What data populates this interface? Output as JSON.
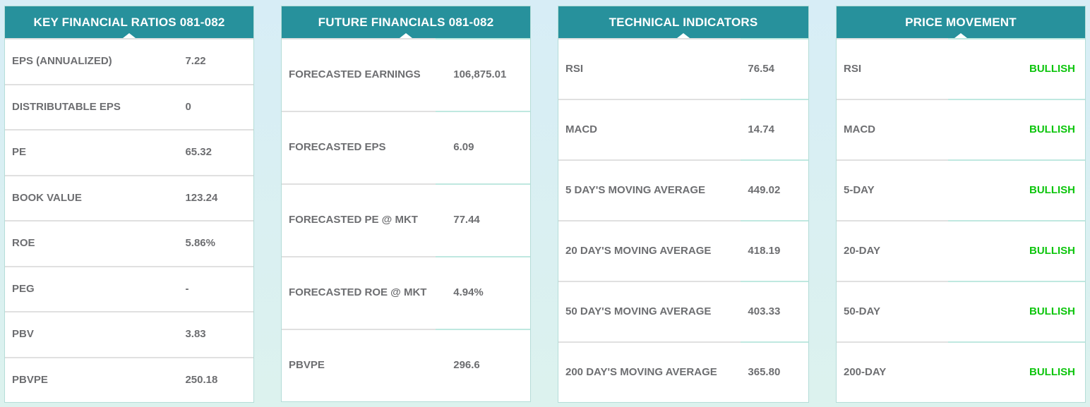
{
  "theme": {
    "header_bg": "#27919c",
    "header_text": "#ffffff",
    "label_color": "#6d6e71",
    "value_color": "#6d6e71",
    "bullish_color": "#0dc50d",
    "page_bg_top": "#d7edf6",
    "page_bg_bottom": "#dcf2ee",
    "card_bg": "#ffffff",
    "card_border": "#b5ddd8",
    "separator_gray": "#e0e0e0",
    "separator_teal": "#bfe8e0"
  },
  "cards": [
    {
      "title": "KEY FINANCIAL RATIOS 081-082",
      "rows": [
        {
          "label": "EPS (ANNUALIZED)",
          "value": "7.22"
        },
        {
          "label": "DISTRIBUTABLE EPS",
          "value": "0"
        },
        {
          "label": "PE",
          "value": "65.32"
        },
        {
          "label": "BOOK VALUE",
          "value": "123.24"
        },
        {
          "label": "ROE",
          "value": "5.86%"
        },
        {
          "label": "PEG",
          "value": "-"
        },
        {
          "label": "PBV",
          "value": "3.83"
        },
        {
          "label": "PBVPE",
          "value": "250.18"
        }
      ]
    },
    {
      "title": "FUTURE FINANCIALS 081-082",
      "rows": [
        {
          "label": "FORECASTED EARNINGS",
          "value": "106,875.01"
        },
        {
          "label": "FORECASTED EPS",
          "value": "6.09"
        },
        {
          "label": "FORECASTED PE @ MKT",
          "value": "77.44"
        },
        {
          "label": "FORECASTED ROE @ MKT",
          "value": "4.94%"
        },
        {
          "label": "PBVPE",
          "value": "296.6"
        }
      ]
    },
    {
      "title": "TECHNICAL INDICATORS",
      "rows": [
        {
          "label": "RSI",
          "value": "76.54"
        },
        {
          "label": "MACD",
          "value": "14.74"
        },
        {
          "label": "5 DAY'S MOVING AVERAGE",
          "value": "449.02"
        },
        {
          "label": "20 DAY'S MOVING AVERAGE",
          "value": "418.19"
        },
        {
          "label": "50 DAY'S MOVING AVERAGE",
          "value": "403.33"
        },
        {
          "label": "200 DAY'S MOVING AVERAGE",
          "value": "365.80"
        }
      ]
    },
    {
      "title": "PRICE MOVEMENT",
      "rows": [
        {
          "label": "RSI",
          "value": "BULLISH"
        },
        {
          "label": "MACD",
          "value": "BULLISH"
        },
        {
          "label": "5-DAY",
          "value": "BULLISH"
        },
        {
          "label": "20-DAY",
          "value": "BULLISH"
        },
        {
          "label": "50-DAY",
          "value": "BULLISH"
        },
        {
          "label": "200-DAY",
          "value": "BULLISH"
        }
      ]
    }
  ]
}
